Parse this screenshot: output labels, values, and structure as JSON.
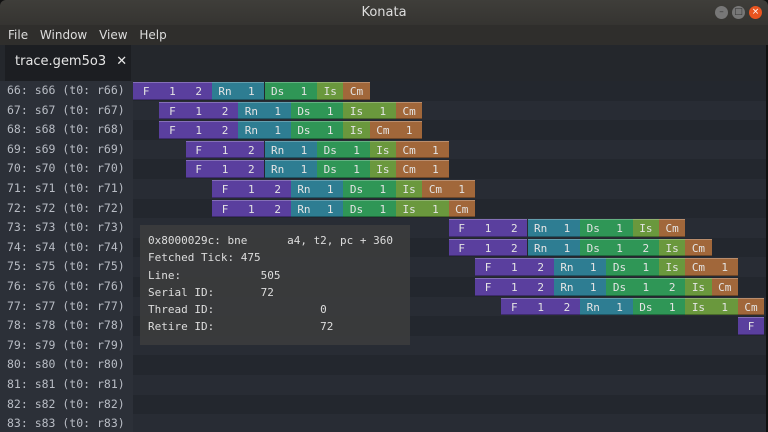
{
  "window": {
    "title": "Konata"
  },
  "menu": [
    "File",
    "Window",
    "View",
    "Help"
  ],
  "tab": {
    "label": "trace.gem5o3",
    "close": "✕"
  },
  "stage_colors": {
    "F": "#5a3f9e",
    "Rn": "#2e7d92",
    "Ds": "#2f9656",
    "Is": "#6a983d",
    "Cm": "#a1673a"
  },
  "rows": [
    {
      "label": "66: s66 (t0: r66)",
      "start": 0,
      "stages": [
        [
          "F",
          3
        ],
        [
          "Rn",
          2
        ],
        [
          "Ds",
          2
        ],
        [
          "Is",
          1
        ],
        [
          "Cm",
          1
        ]
      ]
    },
    {
      "label": "67: s67 (t0: r67)",
      "start": 1,
      "stages": [
        [
          "F",
          3
        ],
        [
          "Rn",
          2
        ],
        [
          "Ds",
          2
        ],
        [
          "Is",
          2
        ],
        [
          "Cm",
          1
        ]
      ]
    },
    {
      "label": "68: s68 (t0: r68)",
      "start": 1,
      "stages": [
        [
          "F",
          3
        ],
        [
          "Rn",
          2
        ],
        [
          "Ds",
          2
        ],
        [
          "Is",
          1
        ],
        [
          "Cm",
          2
        ]
      ]
    },
    {
      "label": "69: s69 (t0: r69)",
      "start": 2,
      "stages": [
        [
          "F",
          3
        ],
        [
          "Rn",
          2
        ],
        [
          "Ds",
          2
        ],
        [
          "Is",
          1
        ],
        [
          "Cm",
          2
        ]
      ]
    },
    {
      "label": "70: s70 (t0: r70)",
      "start": 2,
      "stages": [
        [
          "F",
          3
        ],
        [
          "Rn",
          2
        ],
        [
          "Ds",
          2
        ],
        [
          "Is",
          1
        ],
        [
          "Cm",
          2
        ]
      ]
    },
    {
      "label": "71: s71 (t0: r71)",
      "start": 3,
      "stages": [
        [
          "F",
          3
        ],
        [
          "Rn",
          2
        ],
        [
          "Ds",
          2
        ],
        [
          "Is",
          1
        ],
        [
          "Cm",
          2
        ]
      ]
    },
    {
      "label": "72: s72 (t0: r72)",
      "start": 3,
      "stages": [
        [
          "F",
          3
        ],
        [
          "Rn",
          2
        ],
        [
          "Ds",
          2
        ],
        [
          "Is",
          2
        ],
        [
          "Cm",
          1
        ]
      ]
    },
    {
      "label": "73: s73 (t0: r73)",
      "start": 12,
      "stages": [
        [
          "F",
          3
        ],
        [
          "Rn",
          2
        ],
        [
          "Ds",
          2
        ],
        [
          "Is",
          1
        ],
        [
          "Cm",
          1
        ]
      ]
    },
    {
      "label": "74: s74 (t0: r74)",
      "start": 12,
      "stages": [
        [
          "F",
          3
        ],
        [
          "Rn",
          2
        ],
        [
          "Ds",
          3
        ],
        [
          "Is",
          1
        ],
        [
          "Cm",
          1
        ]
      ]
    },
    {
      "label": "75: s75 (t0: r75)",
      "start": 13,
      "stages": [
        [
          "F",
          3
        ],
        [
          "Rn",
          2
        ],
        [
          "Ds",
          2
        ],
        [
          "Is",
          1
        ],
        [
          "Cm",
          2
        ]
      ]
    },
    {
      "label": "76: s76 (t0: r76)",
      "start": 13,
      "stages": [
        [
          "F",
          3
        ],
        [
          "Rn",
          2
        ],
        [
          "Ds",
          3
        ],
        [
          "Is",
          1
        ],
        [
          "Cm",
          1
        ]
      ]
    },
    {
      "label": "77: s77 (t0: r77)",
      "start": 14,
      "stages": [
        [
          "F",
          3
        ],
        [
          "Rn",
          2
        ],
        [
          "Ds",
          2
        ],
        [
          "Is",
          2
        ],
        [
          "Cm",
          1
        ]
      ]
    },
    {
      "label": "78: s78 (t0: r78)",
      "start": 23,
      "stages": [
        [
          "F",
          1
        ]
      ]
    },
    {
      "label": "79: s79 (t0: r79)",
      "start": 0,
      "stages": []
    },
    {
      "label": "80: s80 (t0: r80)",
      "start": 0,
      "stages": []
    },
    {
      "label": "81: s81 (t0: r81)",
      "start": 0,
      "stages": []
    },
    {
      "label": "82: s82 (t0: r82)",
      "start": 0,
      "stages": []
    },
    {
      "label": "83: s83 (t0: r83)",
      "start": 0,
      "stages": []
    }
  ],
  "tooltip": {
    "lines": [
      "0x8000029c: bne      a4, t2, pc + 360",
      "Fetched Tick: 475",
      "Line:            505",
      "Serial ID:       72",
      "Thread ID:                0",
      "Retire ID:                72"
    ]
  }
}
